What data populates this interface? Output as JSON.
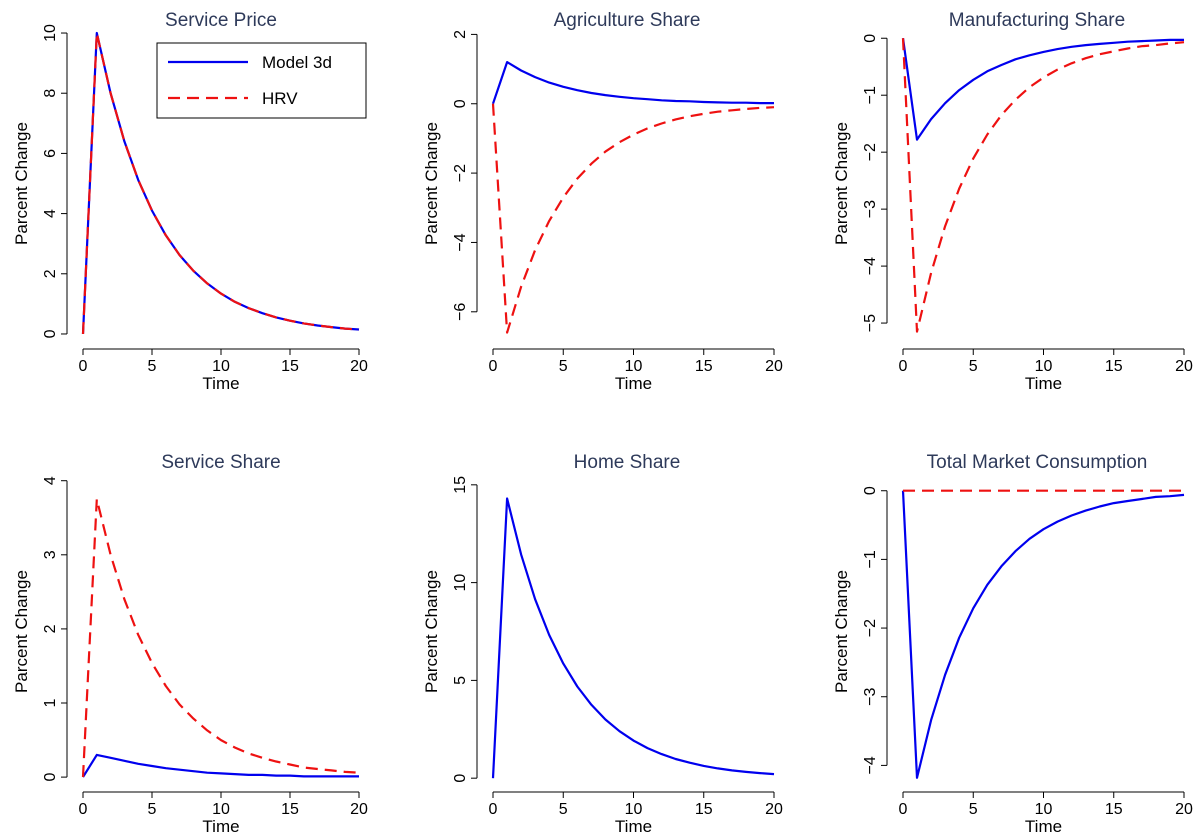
{
  "colors": {
    "model": "#0000ee",
    "hrv": "#ee1111",
    "title": "#2e3a5a"
  },
  "legend": {
    "placement": "top-right",
    "entries": [
      "Model 3d",
      "HRV"
    ]
  },
  "chart_data": [
    {
      "type": "line",
      "title": "Service Price",
      "xlabel": "Time",
      "ylabel": "Parcent Change",
      "xlim": [
        0,
        20
      ],
      "ylim": [
        -0.3,
        10.3
      ],
      "xticks": [
        0,
        5,
        10,
        15,
        20
      ],
      "yticks": [
        0,
        2,
        4,
        6,
        8,
        10
      ],
      "legend": true,
      "series": [
        {
          "name": "Model 3d",
          "style": "solid",
          "color": "#0000ee",
          "x": [
            0,
            1,
            2,
            3,
            4,
            5,
            6,
            7,
            8,
            9,
            10,
            11,
            12,
            13,
            14,
            15,
            16,
            17,
            18,
            19,
            20
          ],
          "y": [
            0,
            10,
            8.0,
            6.4,
            5.12,
            4.1,
            3.28,
            2.62,
            2.1,
            1.68,
            1.34,
            1.07,
            0.86,
            0.69,
            0.55,
            0.44,
            0.35,
            0.28,
            0.23,
            0.18,
            0.15
          ]
        },
        {
          "name": "HRV",
          "style": "dashed",
          "color": "#ee1111",
          "x": [
            0,
            1,
            2,
            3,
            4,
            5,
            6,
            7,
            8,
            9,
            10,
            11,
            12,
            13,
            14,
            15,
            16,
            17,
            18,
            19,
            20
          ],
          "y": [
            0,
            10,
            8.0,
            6.4,
            5.12,
            4.1,
            3.28,
            2.62,
            2.1,
            1.68,
            1.34,
            1.07,
            0.86,
            0.69,
            0.55,
            0.44,
            0.35,
            0.28,
            0.23,
            0.18,
            0.15
          ]
        }
      ]
    },
    {
      "type": "line",
      "title": "Agriculture Share",
      "xlabel": "Time",
      "ylabel": "Parcent Change",
      "xlim": [
        0,
        20
      ],
      "ylim": [
        -6.9,
        2.3
      ],
      "xticks": [
        0,
        5,
        10,
        15,
        20
      ],
      "yticks": [
        -6,
        -4,
        -2,
        0,
        2
      ],
      "legend": false,
      "series": [
        {
          "name": "Model 3d",
          "style": "solid",
          "color": "#0000ee",
          "x": [
            0,
            1,
            2,
            3,
            4,
            5,
            6,
            7,
            8,
            9,
            10,
            11,
            12,
            13,
            14,
            15,
            16,
            17,
            18,
            19,
            20
          ],
          "y": [
            0,
            1.2,
            0.96,
            0.77,
            0.61,
            0.49,
            0.39,
            0.31,
            0.25,
            0.2,
            0.16,
            0.13,
            0.1,
            0.08,
            0.07,
            0.05,
            0.04,
            0.03,
            0.03,
            0.02,
            0.02
          ]
        },
        {
          "name": "HRV",
          "style": "dashed",
          "color": "#ee1111",
          "x": [
            0,
            1,
            2,
            3,
            4,
            5,
            6,
            7,
            8,
            9,
            10,
            11,
            12,
            13,
            14,
            15,
            16,
            17,
            18,
            19,
            20
          ],
          "y": [
            0,
            -6.6,
            -5.28,
            -4.22,
            -3.38,
            -2.7,
            -2.16,
            -1.73,
            -1.38,
            -1.11,
            -0.89,
            -0.71,
            -0.57,
            -0.45,
            -0.36,
            -0.29,
            -0.23,
            -0.19,
            -0.15,
            -0.12,
            -0.1
          ]
        }
      ]
    },
    {
      "type": "line",
      "title": "Manufacturing Share",
      "xlabel": "Time",
      "ylabel": "Parcent Change",
      "xlim": [
        0,
        20
      ],
      "ylim": [
        -5.35,
        0.25
      ],
      "xticks": [
        0,
        5,
        10,
        15,
        20
      ],
      "yticks": [
        -5,
        -4,
        -3,
        -2,
        -1,
        0
      ],
      "legend": false,
      "series": [
        {
          "name": "Model 3d",
          "style": "solid",
          "color": "#0000ee",
          "x": [
            0,
            1,
            2,
            3,
            4,
            5,
            6,
            7,
            8,
            9,
            10,
            11,
            12,
            13,
            14,
            15,
            16,
            17,
            18,
            19,
            20
          ],
          "y": [
            0,
            -1.78,
            -1.42,
            -1.14,
            -0.91,
            -0.73,
            -0.58,
            -0.47,
            -0.37,
            -0.3,
            -0.24,
            -0.19,
            -0.15,
            -0.12,
            -0.1,
            -0.08,
            -0.06,
            -0.05,
            -0.04,
            -0.03,
            -0.03
          ]
        },
        {
          "name": "HRV",
          "style": "dashed",
          "color": "#ee1111",
          "x": [
            0,
            1,
            2,
            3,
            4,
            5,
            6,
            7,
            8,
            9,
            10,
            11,
            12,
            13,
            14,
            15,
            16,
            17,
            18,
            19,
            20
          ],
          "y": [
            0,
            -5.15,
            -4.12,
            -3.3,
            -2.64,
            -2.11,
            -1.69,
            -1.35,
            -1.08,
            -0.86,
            -0.69,
            -0.55,
            -0.44,
            -0.35,
            -0.28,
            -0.23,
            -0.18,
            -0.14,
            -0.12,
            -0.09,
            -0.07
          ]
        }
      ]
    },
    {
      "type": "line",
      "title": "Service Share",
      "xlabel": "Time",
      "ylabel": "Parcent Change",
      "xlim": [
        0,
        20
      ],
      "ylim": [
        -0.12,
        4.05
      ],
      "xticks": [
        0,
        5,
        10,
        15,
        20
      ],
      "yticks": [
        0,
        1,
        2,
        3,
        4
      ],
      "legend": false,
      "series": [
        {
          "name": "Model 3d",
          "style": "solid",
          "color": "#0000ee",
          "x": [
            0,
            1,
            2,
            3,
            4,
            5,
            6,
            7,
            8,
            9,
            10,
            11,
            12,
            13,
            14,
            15,
            16,
            17,
            18,
            19,
            20
          ],
          "y": [
            0,
            0.3,
            0.26,
            0.22,
            0.18,
            0.15,
            0.12,
            0.1,
            0.08,
            0.06,
            0.05,
            0.04,
            0.03,
            0.03,
            0.02,
            0.02,
            0.01,
            0.01,
            0.01,
            0.01,
            0.01
          ]
        },
        {
          "name": "HRV",
          "style": "dashed",
          "color": "#ee1111",
          "x": [
            0,
            1,
            2,
            3,
            4,
            5,
            6,
            7,
            8,
            9,
            10,
            11,
            12,
            13,
            14,
            15,
            16,
            17,
            18,
            19,
            20
          ],
          "y": [
            0,
            3.75,
            3.0,
            2.4,
            1.92,
            1.54,
            1.23,
            0.98,
            0.79,
            0.63,
            0.5,
            0.4,
            0.32,
            0.26,
            0.21,
            0.17,
            0.13,
            0.11,
            0.09,
            0.07,
            0.06
          ]
        }
      ]
    },
    {
      "type": "line",
      "title": "Home Share",
      "xlabel": "Time",
      "ylabel": "Parcent Change",
      "xlim": [
        0,
        20
      ],
      "ylim": [
        -0.4,
        15.4
      ],
      "xticks": [
        0,
        5,
        10,
        15,
        20
      ],
      "yticks": [
        0,
        5,
        10,
        15
      ],
      "legend": false,
      "series": [
        {
          "name": "Model 3d",
          "style": "solid",
          "color": "#0000ee",
          "x": [
            0,
            1,
            2,
            3,
            4,
            5,
            6,
            7,
            8,
            9,
            10,
            11,
            12,
            13,
            14,
            15,
            16,
            17,
            18,
            19,
            20
          ],
          "y": [
            0,
            14.3,
            11.44,
            9.15,
            7.32,
            5.86,
            4.69,
            3.75,
            3.0,
            2.4,
            1.92,
            1.54,
            1.23,
            0.98,
            0.79,
            0.63,
            0.5,
            0.4,
            0.32,
            0.26,
            0.21
          ]
        }
      ]
    },
    {
      "type": "line",
      "title": "Total Market Consumption",
      "xlabel": "Time",
      "ylabel": "Parcent Change",
      "xlim": [
        0,
        20
      ],
      "ylim": [
        -4.3,
        0.2
      ],
      "xticks": [
        0,
        5,
        10,
        15,
        20
      ],
      "yticks": [
        -4,
        -3,
        -2,
        -1,
        0
      ],
      "legend": false,
      "series": [
        {
          "name": "Model 3d",
          "style": "solid",
          "color": "#0000ee",
          "x": [
            0,
            1,
            2,
            3,
            4,
            5,
            6,
            7,
            8,
            9,
            10,
            11,
            12,
            13,
            14,
            15,
            16,
            17,
            18,
            19,
            20
          ],
          "y": [
            0,
            -4.18,
            -3.34,
            -2.68,
            -2.14,
            -1.71,
            -1.37,
            -1.1,
            -0.88,
            -0.7,
            -0.56,
            -0.45,
            -0.36,
            -0.29,
            -0.23,
            -0.18,
            -0.15,
            -0.12,
            -0.09,
            -0.08,
            -0.06
          ]
        },
        {
          "name": "HRV",
          "style": "dashed",
          "color": "#ee1111",
          "x": [
            0,
            1,
            2,
            3,
            4,
            5,
            6,
            7,
            8,
            9,
            10,
            11,
            12,
            13,
            14,
            15,
            16,
            17,
            18,
            19,
            20
          ],
          "y": [
            0,
            0,
            0,
            0,
            0,
            0,
            0,
            0,
            0,
            0,
            0,
            0,
            0,
            0,
            0,
            0,
            0,
            0,
            0,
            0,
            0
          ]
        }
      ]
    }
  ]
}
